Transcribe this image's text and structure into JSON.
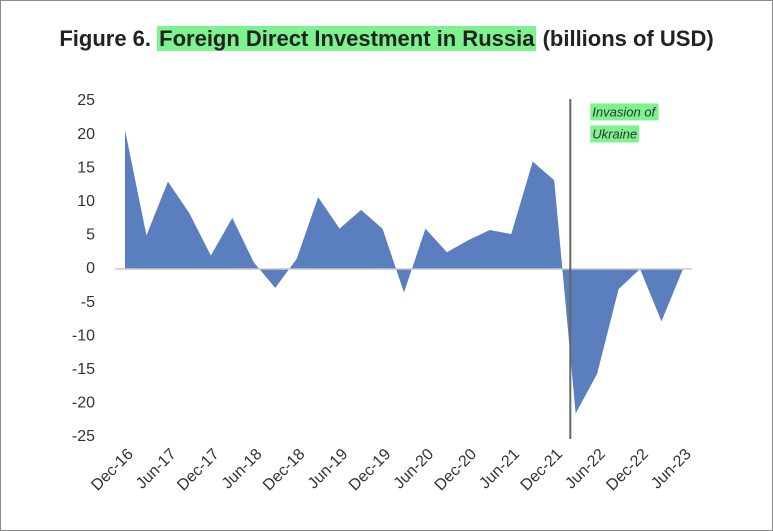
{
  "chart_data": {
    "type": "area",
    "title": {
      "prefix": "Figure 6.",
      "highlight": "Foreign Direct Investment in Russia",
      "suffix": "(billions of USD)"
    },
    "categories": [
      "Dec-16",
      null,
      "Jun-17",
      null,
      "Dec-17",
      null,
      "Jun-18",
      null,
      "Dec-18",
      null,
      "Jun-19",
      null,
      "Dec-19",
      null,
      "Jun-20",
      null,
      "Dec-20",
      null,
      "Jun-21",
      null,
      "Dec-21",
      null,
      "Jun-22",
      null,
      "Dec-22",
      null,
      "Jun-23"
    ],
    "values": [
      20.7,
      5,
      13,
      8.3,
      2,
      7.6,
      1,
      -2.8,
      1.5,
      10.7,
      6,
      8.8,
      6,
      -3.5,
      6,
      2.5,
      4.3,
      5.8,
      5.2,
      16,
      13.2,
      -21.5,
      -15.6,
      -3,
      0,
      -7.8,
      0
    ],
    "color": "#5b7fbe",
    "ylim": [
      -25,
      25
    ],
    "yticks": [
      25,
      20,
      15,
      10,
      5,
      0,
      -5,
      -10,
      -15,
      -20,
      -25
    ],
    "annotation": [
      "Invasion of",
      "Ukraine"
    ]
  }
}
